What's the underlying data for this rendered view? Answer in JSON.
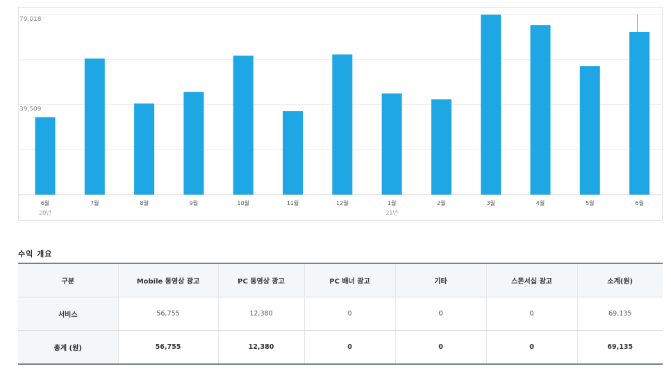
{
  "chart_data": {
    "type": "bar",
    "categories": [
      "6월",
      "7월",
      "8월",
      "9월",
      "10월",
      "11월",
      "12월",
      "1월",
      "2월",
      "3월",
      "4월",
      "5월",
      "6월"
    ],
    "year_labels": [
      {
        "index": 0,
        "label": "20년"
      },
      {
        "index": 7,
        "label": "21년"
      }
    ],
    "values": [
      34000,
      59700,
      40000,
      45100,
      61000,
      36600,
      61500,
      44400,
      41800,
      79018,
      74400,
      56400,
      71400
    ],
    "ytick_labels": [
      "79,018",
      "39,509"
    ],
    "ylim": [
      0,
      79018
    ],
    "bar_color": "#1ea7e4",
    "grid": true
  },
  "summary": {
    "title": "수익 개요",
    "headers": [
      "구분",
      "Mobile 동영상 광고",
      "PC 동영상 광고",
      "PC 배너 광고",
      "기타",
      "스폰서십 광고",
      "소계(원)"
    ],
    "rows": [
      {
        "label": "서비스",
        "cells": [
          "56,755",
          "12,380",
          "0",
          "0",
          "0",
          "69,135"
        ]
      },
      {
        "label": "총계 (원)",
        "cells": [
          "56,755",
          "12,380",
          "0",
          "0",
          "0",
          "69,135"
        ]
      }
    ]
  }
}
